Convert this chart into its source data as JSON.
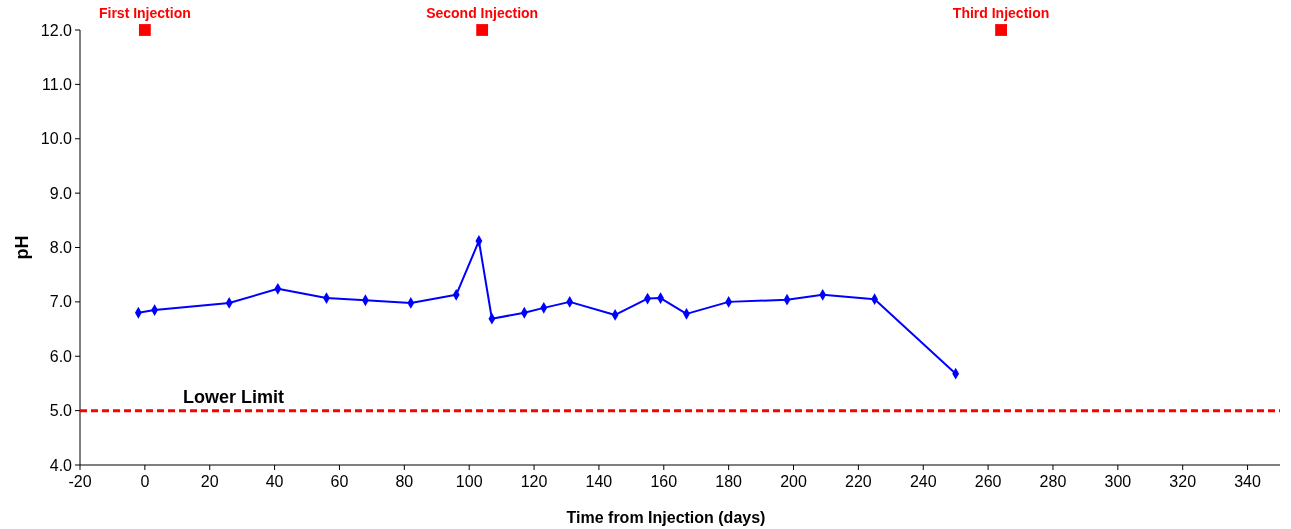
{
  "chart_data": {
    "type": "line",
    "xlabel": "Time from Injection (days)",
    "ylabel": "pH",
    "xlim": [
      -20,
      350
    ],
    "ylim": [
      4,
      12
    ],
    "xticks": [
      -20,
      0,
      20,
      40,
      60,
      80,
      100,
      120,
      140,
      160,
      180,
      200,
      220,
      240,
      260,
      280,
      300,
      320,
      340
    ],
    "yticks": [
      {
        "value": 4,
        "label": "4.0"
      },
      {
        "value": 5,
        "label": "5.0"
      },
      {
        "value": 6,
        "label": "6.0"
      },
      {
        "value": 7,
        "label": "7.0"
      },
      {
        "value": 8,
        "label": "8.0"
      },
      {
        "value": 9,
        "label": "9.0"
      },
      {
        "value": 10,
        "label": "10.0"
      },
      {
        "value": 11,
        "label": "11.0"
      },
      {
        "value": 12,
        "label": "12.0"
      }
    ],
    "grid": false,
    "marker": "diamond",
    "line_style": "solid",
    "series": [
      {
        "color": "#0000ff",
        "x": [
          -2,
          3,
          26,
          41,
          56,
          68,
          82,
          96,
          103,
          107,
          117,
          123,
          131,
          145,
          155,
          159,
          167,
          180,
          198,
          209,
          225,
          250
        ],
        "values": [
          6.8,
          6.85,
          6.98,
          7.24,
          7.07,
          7.03,
          6.98,
          7.13,
          8.12,
          6.69,
          6.8,
          6.89,
          7.0,
          6.76,
          7.06,
          7.07,
          6.78,
          7.0,
          7.04,
          7.13,
          7.05,
          5.68
        ]
      },
      {
        "type": "scatter",
        "color": "#ff0000",
        "marker": "square",
        "x": [
          0,
          104,
          264
        ],
        "values": [
          12,
          12,
          12
        ]
      }
    ],
    "ref_lines": [
      {
        "axis": "y",
        "value": 5,
        "label": "Lower Limit",
        "color": "#ff0000",
        "line_style": "dashed"
      }
    ],
    "annotations": [
      {
        "text": "First Injection",
        "x": 0,
        "y": 12
      },
      {
        "text": "Second Injection",
        "x": 104,
        "y": 12
      },
      {
        "text": "Third Injection",
        "x": 264,
        "y": 12
      }
    ]
  }
}
